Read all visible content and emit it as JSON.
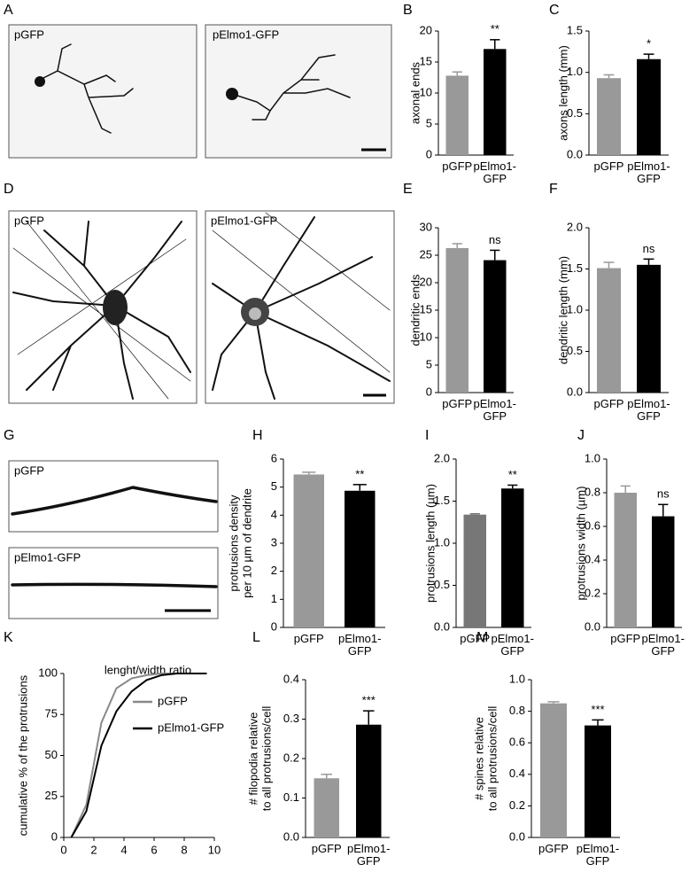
{
  "figure": {
    "panel_letters": [
      "A",
      "D",
      "G"
    ],
    "images": [
      "pGFP",
      "pElmo1-GFP",
      "pGFP",
      "pElmo1-GFP",
      "pGFP",
      "pElmo1-GFP"
    ]
  },
  "chart_data": [
    {
      "type": "bar",
      "panel": "B",
      "ylabel": [
        "axonal ends"
      ],
      "categories": [
        "pGFP",
        "pElmo1-GFP"
      ],
      "values": [
        12.8,
        17.1
      ],
      "errors": [
        0.6,
        1.5
      ],
      "colors": [
        "#999999",
        "#000000"
      ],
      "annotation": "**",
      "ylim": [
        0,
        20
      ],
      "yticks": [
        0,
        5,
        10,
        15,
        20
      ]
    },
    {
      "type": "bar",
      "panel": "C",
      "ylabel": [
        "axons length (mm)"
      ],
      "categories": [
        "pGFP",
        "pElmo1-GFP"
      ],
      "values": [
        0.93,
        1.16
      ],
      "errors": [
        0.04,
        0.06
      ],
      "colors": [
        "#999999",
        "#000000"
      ],
      "annotation": "*",
      "ylim": [
        0,
        1.5
      ],
      "yticks": [
        {
          "value": 0,
          "label": "0.0"
        },
        0.5,
        {
          "value": 1,
          "label": "1.0"
        },
        1.5
      ]
    },
    {
      "type": "bar",
      "panel": "E",
      "ylabel": [
        "dendritic ends"
      ],
      "categories": [
        "pGFP",
        "pElmo1-GFP"
      ],
      "values": [
        26.3,
        24.1
      ],
      "errors": [
        0.8,
        1.8
      ],
      "colors": [
        "#999999",
        "#000000"
      ],
      "annotation": "ns",
      "ylim": [
        0,
        30
      ],
      "yticks": [
        0,
        5,
        10,
        15,
        20,
        25,
        30
      ]
    },
    {
      "type": "bar",
      "panel": "F",
      "ylabel": [
        "dendritic length (mm)"
      ],
      "categories": [
        "pGFP",
        "pElmo1-GFP"
      ],
      "values": [
        1.51,
        1.55
      ],
      "errors": [
        0.07,
        0.07
      ],
      "colors": [
        "#999999",
        "#000000"
      ],
      "annotation": "ns",
      "ylim": [
        0,
        2
      ],
      "yticks": [
        {
          "value": 0,
          "label": "0.0"
        },
        0.5,
        {
          "value": 1,
          "label": "1.0"
        },
        1.5,
        {
          "value": 2,
          "label": "2.0"
        }
      ]
    },
    {
      "type": "bar",
      "panel": "H",
      "ylabel": [
        "protrusions density",
        "per 10 µm of dendrite"
      ],
      "categories": [
        "pGFP",
        "pElmo1-GFP"
      ],
      "values": [
        5.45,
        4.87
      ],
      "errors": [
        0.08,
        0.22
      ],
      "colors": [
        "#999999",
        "#000000"
      ],
      "annotation": "**",
      "ylim": [
        0,
        6
      ],
      "yticks": [
        0,
        1,
        2,
        3,
        4,
        5,
        6
      ]
    },
    {
      "type": "bar",
      "panel": "I",
      "ylabel": [
        "protrusions length (µm)"
      ],
      "categories": [
        "pGFP",
        "pElmo1-GFP"
      ],
      "values": [
        1.34,
        1.65
      ],
      "errors": [
        0.01,
        0.04
      ],
      "colors": [
        "#777777",
        "#000000"
      ],
      "annotation": "**",
      "ylim": [
        0,
        2
      ],
      "yticks": [
        {
          "value": 0,
          "label": "0.0"
        },
        0.5,
        {
          "value": 1,
          "label": "1.0"
        },
        1.5,
        {
          "value": 2,
          "label": "2.0"
        }
      ]
    },
    {
      "type": "bar",
      "panel": "J",
      "ylabel": [
        "protrusions width (µm)"
      ],
      "categories": [
        "pGFP",
        "pElmo1-GFP"
      ],
      "values": [
        0.8,
        0.66
      ],
      "errors": [
        0.04,
        0.07
      ],
      "colors": [
        "#999999",
        "#000000"
      ],
      "annotation": "ns",
      "ylim": [
        0,
        1
      ],
      "yticks": [
        {
          "value": 0,
          "label": "0.0"
        },
        0.2,
        0.4,
        0.6,
        0.8,
        {
          "value": 1,
          "label": "1.0"
        }
      ]
    },
    {
      "type": "line",
      "panel": "K",
      "title": "lenght/width ratio",
      "ylabel": [
        "cumulative % of the protrusions"
      ],
      "x": [
        0.5,
        1.5,
        2.5,
        3.5,
        4.5,
        5.5,
        6.5,
        7.5,
        8.5,
        9.5
      ],
      "series": [
        {
          "name": "pGFP",
          "color": "#888888",
          "values": [
            0,
            20,
            70,
            91,
            97,
            99,
            100,
            100,
            100,
            100
          ]
        },
        {
          "name": "pElmo1-GFP",
          "color": "#000000",
          "values": [
            0,
            16,
            56,
            77,
            89,
            96,
            99,
            100,
            100,
            100
          ]
        }
      ],
      "xlim": [
        0,
        10
      ],
      "xticks": [
        0,
        2,
        4,
        6,
        8,
        10
      ],
      "ylim": [
        0,
        100
      ],
      "yticks": [
        0,
        25,
        50,
        75,
        100
      ]
    },
    {
      "type": "bar",
      "panel": "L",
      "ylabel": [
        "# filopodia relative",
        "to all protrusions/cell"
      ],
      "categories": [
        "pGFP",
        "pElmo1-GFP"
      ],
      "values": [
        0.15,
        0.286
      ],
      "errors": [
        0.01,
        0.035
      ],
      "colors": [
        "#999999",
        "#000000"
      ],
      "annotation": "***",
      "ylim": [
        0,
        0.4
      ],
      "yticks": [
        {
          "value": 0,
          "label": "0.0"
        },
        0.1,
        0.2,
        0.3,
        0.4
      ]
    },
    {
      "type": "bar",
      "panel": "M",
      "ylabel": [
        "# spines relative",
        "to all protrusions/cell"
      ],
      "categories": [
        "pGFP",
        "pElmo1-GFP"
      ],
      "values": [
        0.85,
        0.71
      ],
      "errors": [
        0.01,
        0.035
      ],
      "colors": [
        "#999999",
        "#000000"
      ],
      "annotation": "***",
      "ylim": [
        0,
        1
      ],
      "yticks": [
        {
          "value": 0,
          "label": "0.0"
        },
        0.2,
        0.4,
        0.6,
        0.8,
        {
          "value": 1,
          "label": "1.0"
        }
      ]
    }
  ]
}
